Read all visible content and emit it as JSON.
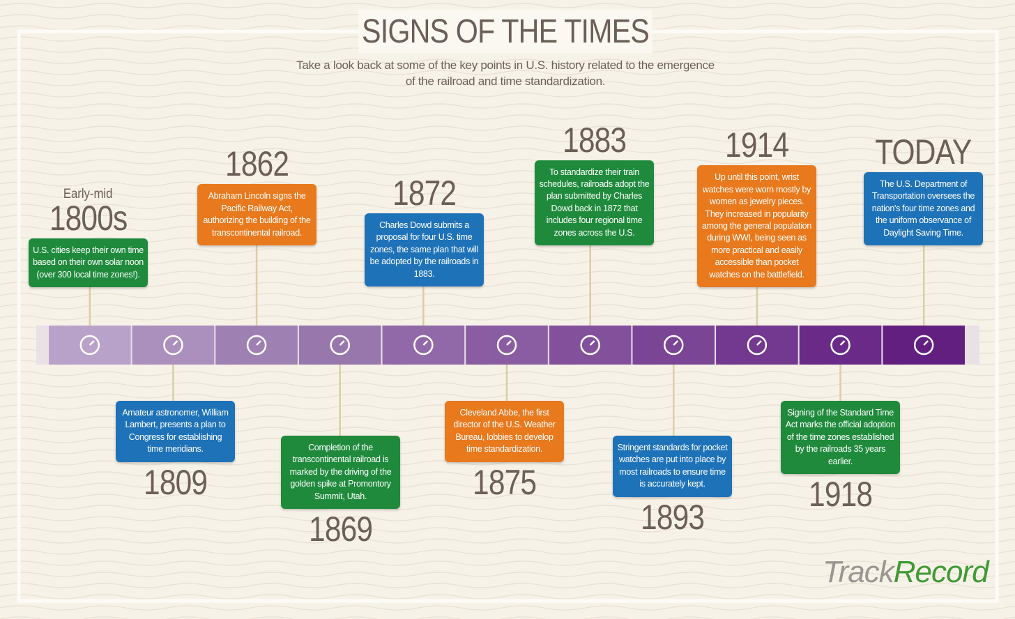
{
  "header": {
    "title": "SIGNS OF THE TIMES",
    "subtitle": "Take a look back at some of the key points in U.S. history related to the emergence of the railroad and time standardization."
  },
  "events": [
    {
      "prefix": "Early-mid",
      "year": "1800s",
      "text": "U.S. cities keep their own time based on their own solar noon (over 300 local time zones!).",
      "color": "#1f8a3c"
    },
    {
      "year": "1809",
      "text": "Amateur astronomer, William Lambert, presents a plan to Congress for establishing time meridians.",
      "color": "#1e72b8"
    },
    {
      "year": "1862",
      "text": "Abraham Lincoln signs the Pacific Railway Act, authorizing the building of the transcontinental railroad.",
      "color": "#e8791d"
    },
    {
      "year": "1869",
      "text": "Completion of the transcontinental railroad is marked by the driving of the golden spike at Promontory Summit, Utah.",
      "color": "#1f8a3c"
    },
    {
      "year": "1872",
      "text": "Charles Dowd submits a proposal for four U.S. time zones, the same plan that will be adopted by the railroads in 1883.",
      "color": "#1e72b8"
    },
    {
      "year": "1875",
      "text": "Cleveland Abbe, the first director of the U.S. Weather Bureau, lobbies to develop time standardization.",
      "color": "#e8791d"
    },
    {
      "year": "1883",
      "text": "To standardize their train schedules, railroads adopt the plan submitted by Charles Dowd back in 1872 that includes four regional time zones across the U.S.",
      "color": "#1f8a3c"
    },
    {
      "year": "1893",
      "text": "Stringent standards for pocket watches are put into place by most railroads to ensure time is accurately kept.",
      "color": "#1e72b8"
    },
    {
      "year": "1914",
      "text": "Up until this point, wrist watches were worn mostly by women as jewelry pieces. They increased in popularity among the general population during WWI, being seen as more practical and easily accessible than pocket watches on the battlefield.",
      "color": "#e8791d"
    },
    {
      "year": "1918",
      "text": "Signing of the Standard Time Act marks the official adoption of the time zones established by the railroads 35 years earlier.",
      "color": "#1f8a3c"
    },
    {
      "year": "TODAY",
      "text": "The U.S. Department of Transportation oversees the nation's four time zones and the uniform observance of Daylight Saving Time.",
      "color": "#1e72b8"
    }
  ],
  "logo": {
    "left": "Track",
    "right": "Record"
  }
}
